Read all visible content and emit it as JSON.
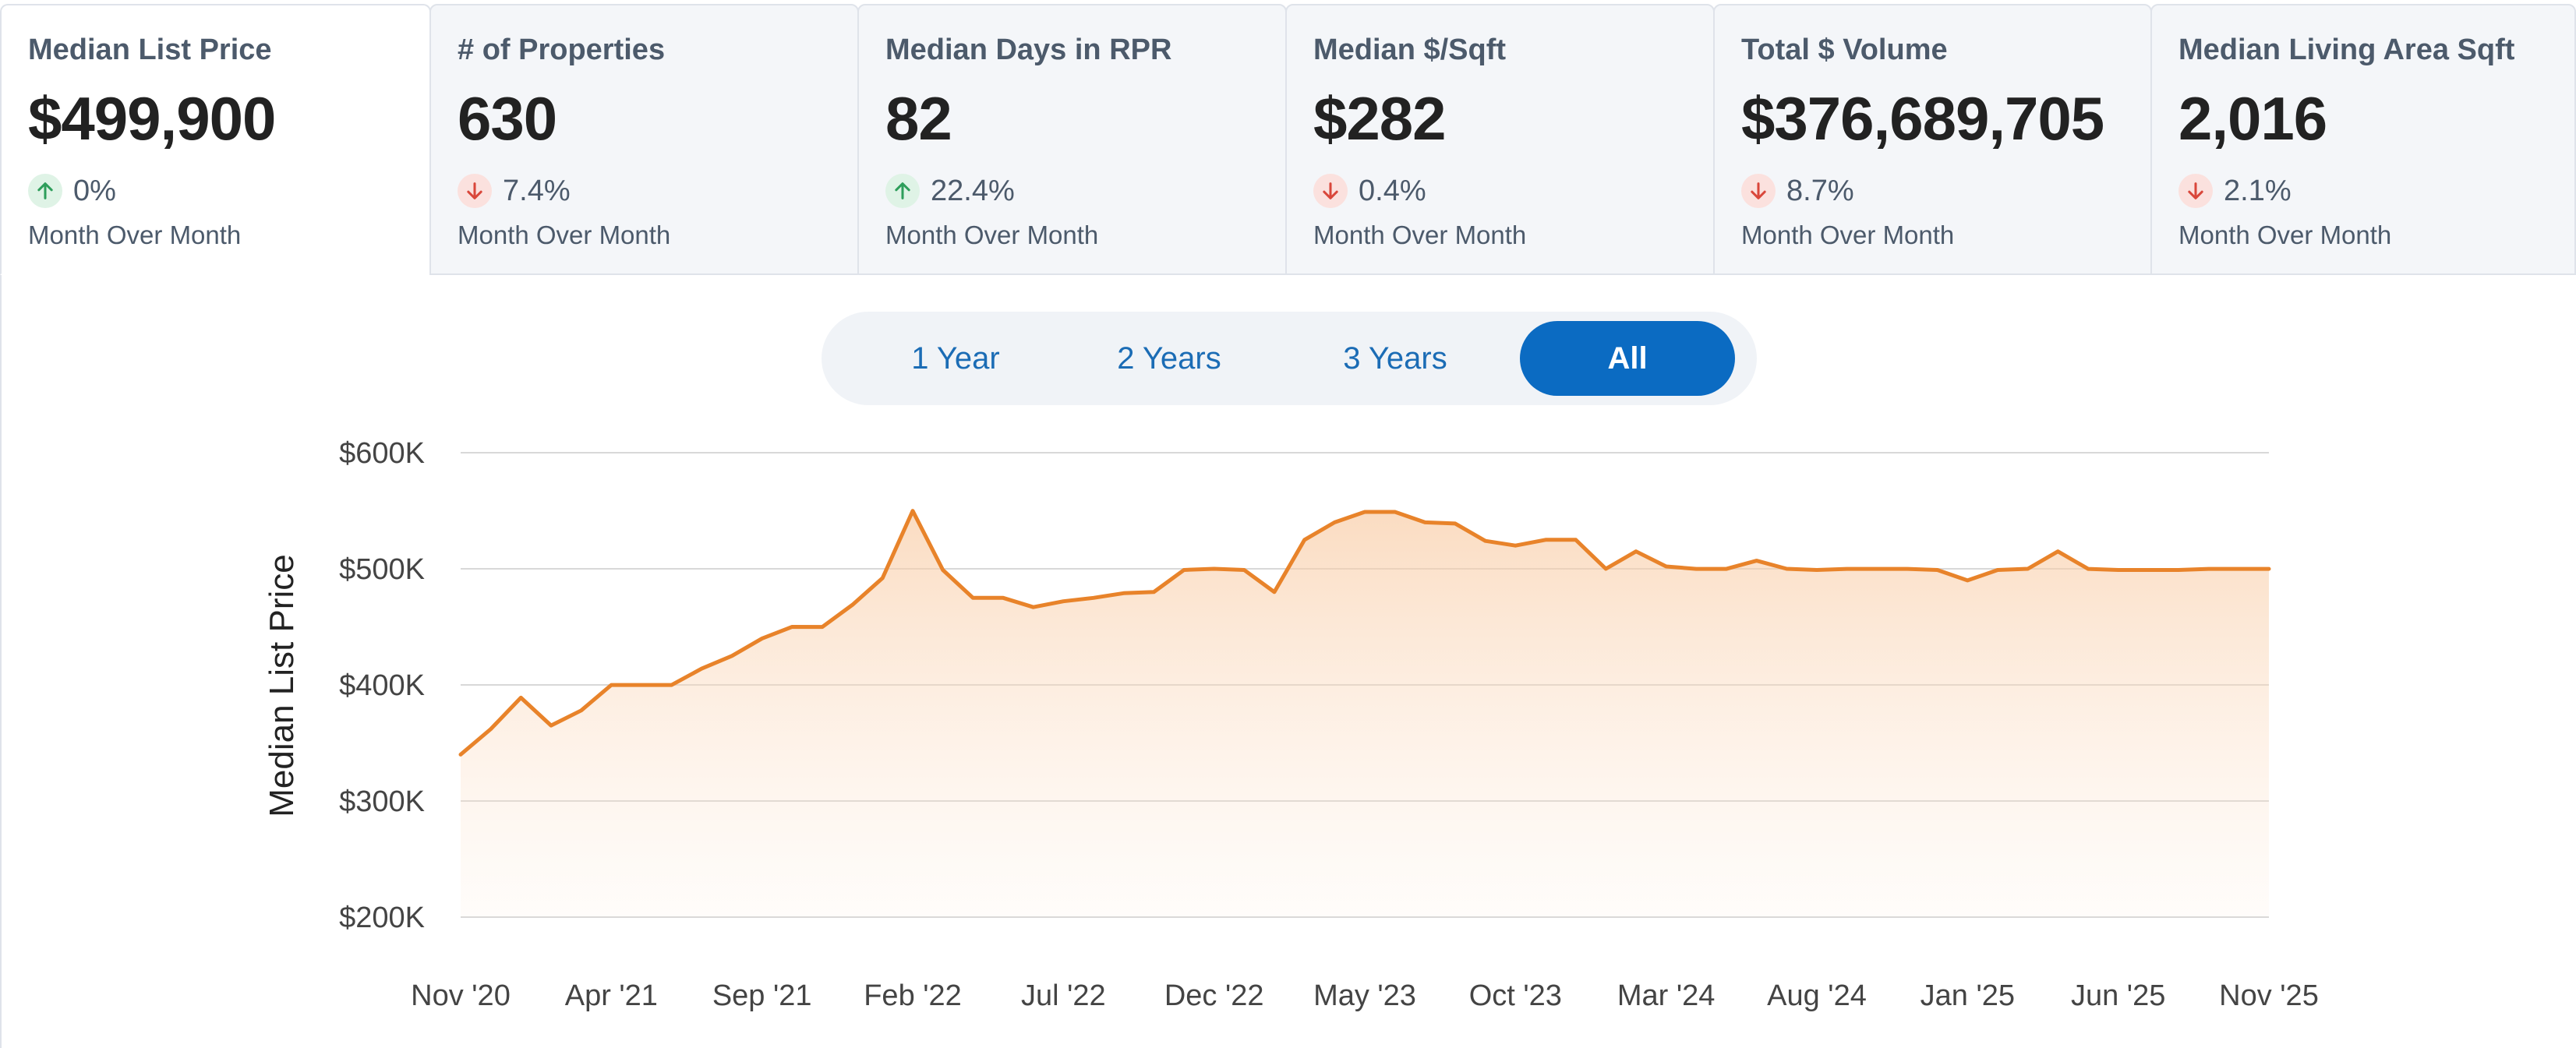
{
  "metrics": [
    {
      "title": "Median List Price",
      "value": "$499,900",
      "direction": "up",
      "change": "0%",
      "period": "Month Over Month",
      "active": true
    },
    {
      "title": "# of Properties",
      "value": "630",
      "direction": "down",
      "change": "7.4%",
      "period": "Month Over Month",
      "active": false
    },
    {
      "title": "Median Days in RPR",
      "value": "82",
      "direction": "up",
      "change": "22.4%",
      "period": "Month Over Month",
      "active": false
    },
    {
      "title": "Median $/Sqft",
      "value": "$282",
      "direction": "down",
      "change": "0.4%",
      "period": "Month Over Month",
      "active": false
    },
    {
      "title": "Total $ Volume",
      "value": "$376,689,705",
      "direction": "down",
      "change": "8.7%",
      "period": "Month Over Month",
      "active": false
    },
    {
      "title": "Median Living Area Sqft",
      "value": "2,016",
      "direction": "down",
      "change": "2.1%",
      "period": "Month Over Month",
      "active": false
    }
  ],
  "range_selector": {
    "options": [
      "1 Year",
      "2 Years",
      "3 Years",
      "All"
    ],
    "selected": "All"
  },
  "colors": {
    "line": "#e8832a",
    "up": "#2e9e5b",
    "down": "#d9473b",
    "accent": "#0b6bc2"
  },
  "chart_data": {
    "type": "area",
    "ylabel": "Median List Price",
    "ylim": [
      200000,
      600000
    ],
    "y_ticks": [
      {
        "value": 600000,
        "label": "$600K"
      },
      {
        "value": 500000,
        "label": "$500K"
      },
      {
        "value": 400000,
        "label": "$400K"
      },
      {
        "value": 300000,
        "label": "$300K"
      },
      {
        "value": 200000,
        "label": "$200K"
      }
    ],
    "x_ticks": [
      "Nov '20",
      "Apr '21",
      "Sep '21",
      "Feb '22",
      "Jul '22",
      "Dec '22",
      "May '23",
      "Oct '23",
      "Mar '24",
      "Aug '24",
      "Jan '25",
      "Jun '25",
      "Nov '25"
    ],
    "x": [
      "Nov '20",
      "Dec '20",
      "Jan '21",
      "Feb '21",
      "Mar '21",
      "Apr '21",
      "May '21",
      "Jun '21",
      "Jul '21",
      "Aug '21",
      "Sep '21",
      "Oct '21",
      "Nov '21",
      "Dec '21",
      "Jan '22",
      "Feb '22",
      "Mar '22",
      "Apr '22",
      "May '22",
      "Jun '22",
      "Jul '22",
      "Aug '22",
      "Sep '22",
      "Oct '22",
      "Nov '22",
      "Dec '22",
      "Jan '23",
      "Feb '23",
      "Mar '23",
      "Apr '23",
      "May '23",
      "Jun '23",
      "Jul '23",
      "Aug '23",
      "Sep '23",
      "Oct '23",
      "Nov '23",
      "Dec '23",
      "Jan '24",
      "Feb '24",
      "Mar '24",
      "Apr '24",
      "May '24",
      "Jun '24",
      "Jul '24",
      "Aug '24",
      "Sep '24",
      "Oct '24",
      "Nov '24",
      "Dec '24",
      "Jan '25",
      "Feb '25",
      "Mar '25",
      "Apr '25",
      "May '25",
      "Jun '25",
      "Jul '25",
      "Aug '25",
      "Sep '25",
      "Oct '25",
      "Nov '25"
    ],
    "series": [
      {
        "values": [
          340000,
          362000,
          389000,
          365000,
          378000,
          399900,
          399900,
          399900,
          414000,
          425000,
          440000,
          450000,
          449900,
          469000,
          492000,
          549900,
          499000,
          475000,
          475000,
          467000,
          472000,
          475000,
          479000,
          480000,
          499000,
          500000,
          499000,
          480000,
          525000,
          540000,
          549000,
          549000,
          540000,
          539000,
          524000,
          520000,
          525000,
          525000,
          500000,
          515000,
          502000,
          499900,
          499900,
          507000,
          500000,
          499000,
          499900,
          499900,
          499900,
          499000,
          490000,
          499000,
          500000,
          515000,
          499900,
          499000,
          499000,
          499000,
          499900,
          499900,
          499900
        ]
      }
    ],
    "grid": true
  }
}
